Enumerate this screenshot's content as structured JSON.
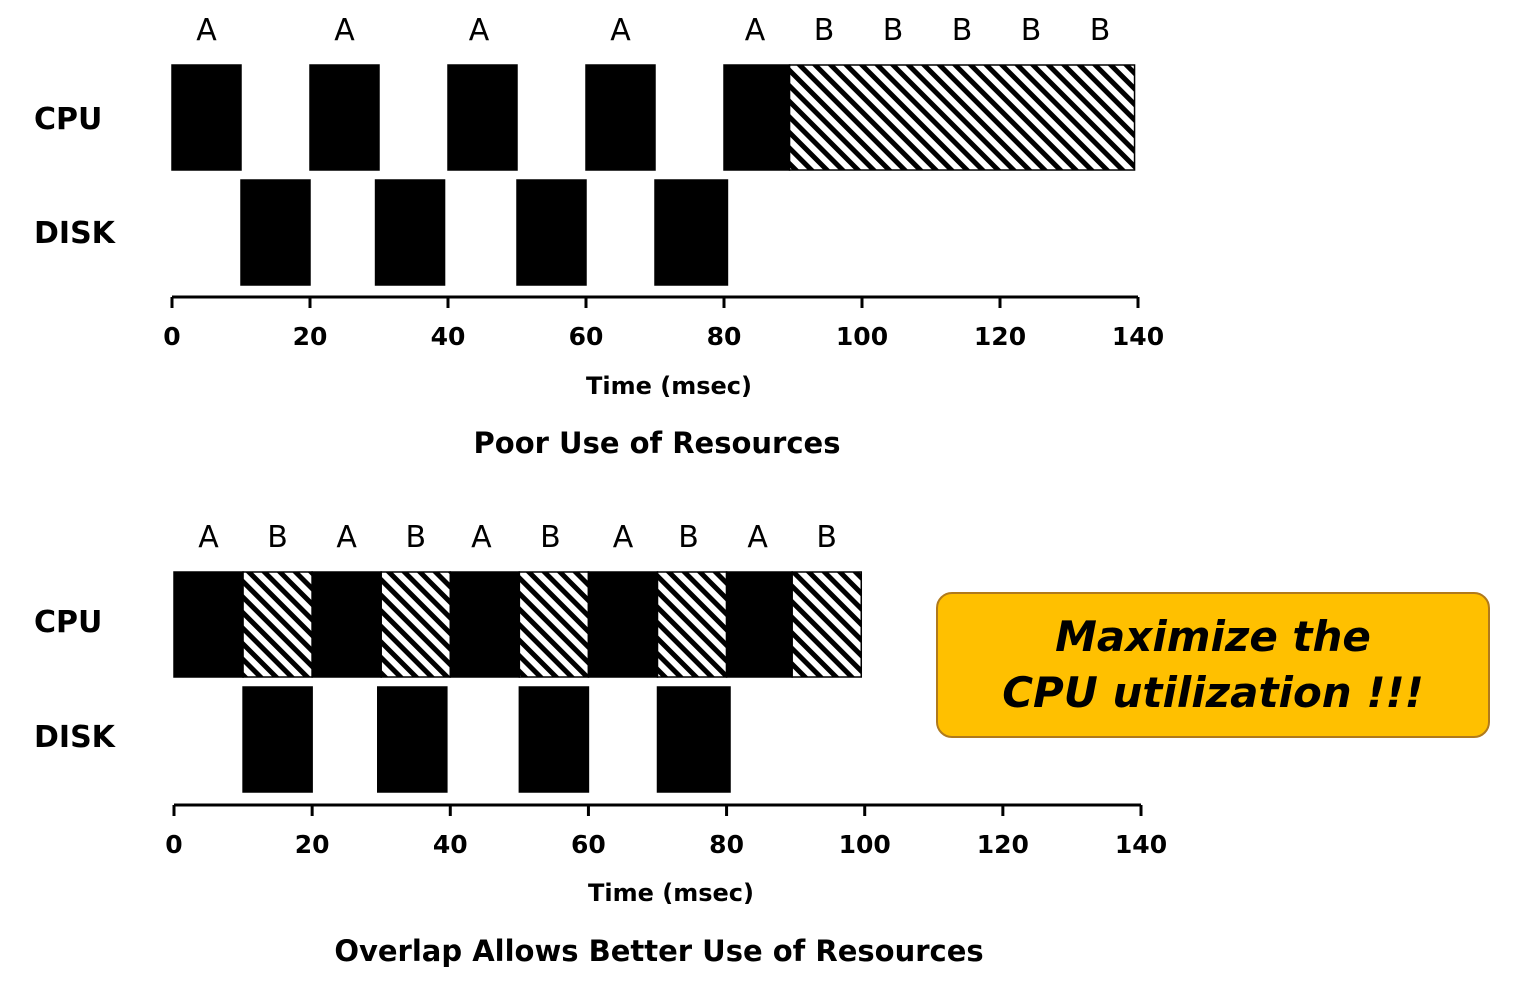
{
  "chart_data": [
    {
      "type": "timeline",
      "caption": "Poor Use of Resources",
      "xlabel": "Time (msec)",
      "x_ticks": [
        "0",
        "20",
        "40",
        "60",
        "80",
        "100",
        "120",
        "140"
      ],
      "xlim": [
        0,
        140
      ],
      "rows": [
        "CPU",
        "DISK"
      ],
      "segments": [
        {
          "row": "CPU",
          "process": "A",
          "start": 0,
          "end": 10
        },
        {
          "row": "CPU",
          "process": "A",
          "start": 20,
          "end": 30
        },
        {
          "row": "CPU",
          "process": "A",
          "start": 40,
          "end": 50
        },
        {
          "row": "CPU",
          "process": "A",
          "start": 60,
          "end": 70
        },
        {
          "row": "CPU",
          "process": "A",
          "start": 80,
          "end": 89.5
        },
        {
          "row": "CPU",
          "process": "B",
          "start": 89.5,
          "end": 139.5
        },
        {
          "row": "DISK",
          "process": "A",
          "start": 10,
          "end": 20
        },
        {
          "row": "DISK",
          "process": "A",
          "start": 29.5,
          "end": 39.5
        },
        {
          "row": "DISK",
          "process": "A",
          "start": 50,
          "end": 60
        },
        {
          "row": "DISK",
          "process": "A",
          "start": 70,
          "end": 80.5
        }
      ],
      "segment_labels": [
        {
          "text": "A",
          "x": 5
        },
        {
          "text": "A",
          "x": 25
        },
        {
          "text": "A",
          "x": 44.5
        },
        {
          "text": "A",
          "x": 65
        },
        {
          "text": "A",
          "x": 84.5
        },
        {
          "text": "B",
          "x": 94.5
        },
        {
          "text": "B",
          "x": 104.5
        },
        {
          "text": "B",
          "x": 114.5
        },
        {
          "text": "B",
          "x": 124.5
        },
        {
          "text": "B",
          "x": 134.5
        }
      ]
    },
    {
      "type": "timeline",
      "caption": "Overlap Allows Better Use of Resources",
      "xlabel": "Time (msec)",
      "x_ticks": [
        "0",
        "20",
        "40",
        "60",
        "80",
        "100",
        "120",
        "140"
      ],
      "xlim": [
        0,
        140
      ],
      "rows": [
        "CPU",
        "DISK"
      ],
      "segments": [
        {
          "row": "CPU",
          "process": "A",
          "start": 0,
          "end": 10
        },
        {
          "row": "CPU",
          "process": "B",
          "start": 10,
          "end": 20
        },
        {
          "row": "CPU",
          "process": "A",
          "start": 20,
          "end": 30
        },
        {
          "row": "CPU",
          "process": "B",
          "start": 30,
          "end": 40
        },
        {
          "row": "CPU",
          "process": "A",
          "start": 40,
          "end": 50
        },
        {
          "row": "CPU",
          "process": "B",
          "start": 50,
          "end": 60
        },
        {
          "row": "CPU",
          "process": "A",
          "start": 60,
          "end": 70
        },
        {
          "row": "CPU",
          "process": "B",
          "start": 70,
          "end": 80
        },
        {
          "row": "CPU",
          "process": "A",
          "start": 80,
          "end": 89.5
        },
        {
          "row": "CPU",
          "process": "B",
          "start": 89.5,
          "end": 99.5
        },
        {
          "row": "DISK",
          "process": "A",
          "start": 10,
          "end": 20
        },
        {
          "row": "DISK",
          "process": "A",
          "start": 29.5,
          "end": 39.5
        },
        {
          "row": "DISK",
          "process": "A",
          "start": 50,
          "end": 60
        },
        {
          "row": "DISK",
          "process": "A",
          "start": 70,
          "end": 80.5
        }
      ],
      "segment_labels": [
        {
          "text": "A",
          "x": 5
        },
        {
          "text": "B",
          "x": 15
        },
        {
          "text": "A",
          "x": 25
        },
        {
          "text": "B",
          "x": 35
        },
        {
          "text": "A",
          "x": 44.5
        },
        {
          "text": "B",
          "x": 54.5
        },
        {
          "text": "A",
          "x": 65
        },
        {
          "text": "B",
          "x": 74.5
        },
        {
          "text": "A",
          "x": 84.5
        },
        {
          "text": "B",
          "x": 94.5
        }
      ]
    }
  ],
  "callout": {
    "line1": "Maximize the",
    "line2": "CPU utilization !!!",
    "color": "#ffc000"
  },
  "colors": {
    "process_A": "#000000",
    "process_B_pattern": "black/white diagonal hatch",
    "axis": "#000000"
  }
}
